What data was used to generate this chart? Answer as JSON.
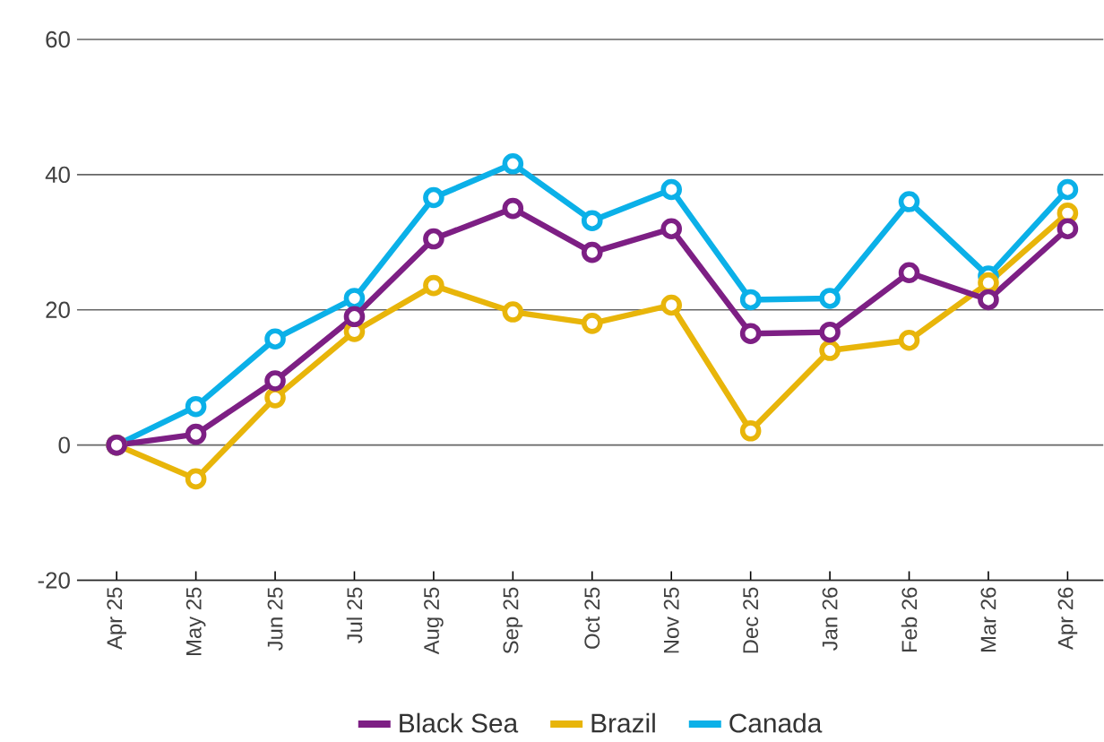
{
  "chart_data": {
    "type": "line",
    "categories": [
      "Apr 25",
      "May 25",
      "Jun 25",
      "Jul 25",
      "Aug 25",
      "Sep 25",
      "Oct 25",
      "Nov 25",
      "Dec 25",
      "Jan 26",
      "Feb 26",
      "Mar 26",
      "Apr 26"
    ],
    "series": [
      {
        "name": "Black Sea",
        "color": "#7d1f84",
        "values": [
          0,
          1.6,
          9.5,
          19,
          30.5,
          35,
          28.5,
          32,
          16.5,
          16.7,
          25.5,
          21.5,
          32
        ]
      },
      {
        "name": "Brazil",
        "color": "#e8b50a",
        "values": [
          0,
          -5,
          7,
          16.8,
          23.6,
          19.7,
          18,
          20.7,
          2.1,
          14,
          15.5,
          24,
          34.3
        ]
      },
      {
        "name": "Canada",
        "color": "#0bb0e8",
        "values": [
          0,
          5.7,
          15.7,
          21.7,
          36.6,
          41.6,
          33.2,
          37.8,
          21.5,
          21.7,
          36,
          25,
          37.8
        ]
      }
    ],
    "ylim": [
      -20,
      60
    ],
    "yticks": [
      -20,
      0,
      20,
      40,
      60
    ],
    "grid": "y",
    "legend": "bottom",
    "marker": "circle",
    "line_style": "solid"
  }
}
